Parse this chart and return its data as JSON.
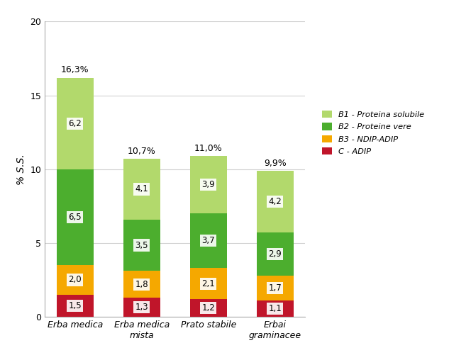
{
  "categories": [
    "Erba medica",
    "Erba medica\nmista",
    "Prato stabile",
    "Erbai\ngraminacee"
  ],
  "totals": [
    "16,3%",
    "10,7%",
    "11,0%",
    "9,9%"
  ],
  "segments": {
    "C - ADIP": [
      1.5,
      1.3,
      1.2,
      1.1
    ],
    "B3 - NDIP-ADIP": [
      2.0,
      1.8,
      2.1,
      1.7
    ],
    "B2 - Proteine vere": [
      6.5,
      3.5,
      3.7,
      2.9
    ],
    "B1 - Proteina solubile": [
      6.2,
      4.1,
      3.9,
      4.2
    ]
  },
  "colors": {
    "C - ADIP": "#c0152a",
    "B3 - NDIP-ADIP": "#f5a800",
    "B2 - Proteine vere": "#4cae2e",
    "B1 - Proteina solubile": "#b2d96c"
  },
  "legend_labels": [
    "B1 - Proteina solubile",
    "B2 - Proteine vere",
    "B3 - NDIP-ADIP",
    "C - ADIP"
  ],
  "ylabel": "% S.S.",
  "ylim": [
    0,
    20
  ],
  "yticks": [
    0,
    5,
    10,
    15,
    20
  ],
  "bar_width": 0.55,
  "label_values": {
    "C - ADIP": [
      "1,5",
      "1,3",
      "1,2",
      "1,1"
    ],
    "B3 - NDIP-ADIP": [
      "2,0",
      "1,8",
      "2,1",
      "1,7"
    ],
    "B2 - Proteine vere": [
      "6,5",
      "3,5",
      "3,7",
      "2,9"
    ],
    "B1 - Proteina solubile": [
      "6,2",
      "4,1",
      "3,9",
      "4,2"
    ]
  },
  "background_color": "#ffffff",
  "grid_color": "#d0d0d0"
}
